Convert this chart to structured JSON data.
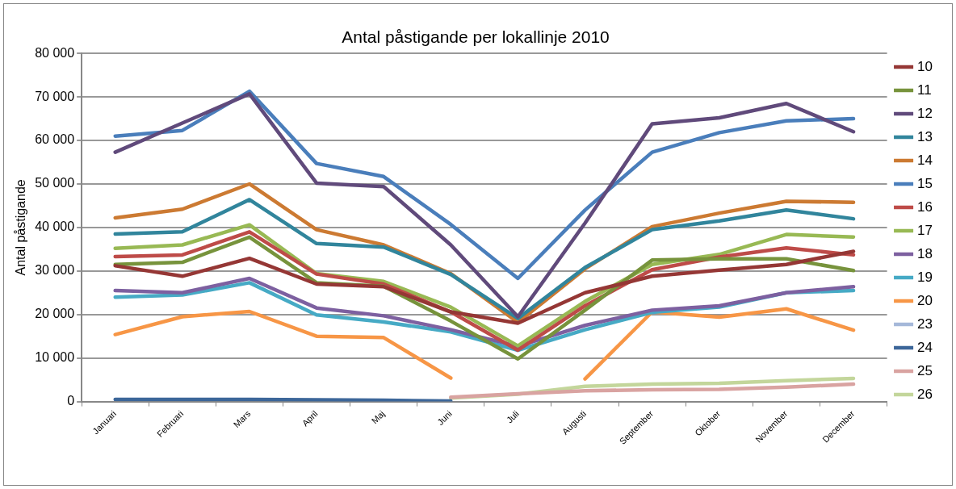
{
  "chart_data": {
    "type": "line",
    "title": "Antal påstigande per lokallinje 2010",
    "ylabel": "Antal påstigande",
    "categories": [
      "Januari",
      "Februari",
      "Mars",
      "April",
      "Maj",
      "Juni",
      "Juli",
      "Augusti",
      "September",
      "Oktober",
      "November",
      "December"
    ],
    "ylim": [
      0,
      80000
    ],
    "yticks": [
      {
        "value": 0,
        "label": "0"
      },
      {
        "value": 10000,
        "label": "10 000"
      },
      {
        "value": 20000,
        "label": "20 000"
      },
      {
        "value": 30000,
        "label": "30 000"
      },
      {
        "value": 40000,
        "label": "40 000"
      },
      {
        "value": 50000,
        "label": "50 000"
      },
      {
        "value": 60000,
        "label": "60 000"
      },
      {
        "value": 70000,
        "label": "70 000"
      },
      {
        "value": 80000,
        "label": "80 000"
      }
    ],
    "grid": "y",
    "legend": "right",
    "marker": "none",
    "line_style": "solid",
    "series": [
      {
        "name": "10",
        "color": "#953735",
        "values": [
          31200,
          28800,
          32900,
          27000,
          26400,
          20600,
          18000,
          25000,
          28800,
          30200,
          31500,
          34500
        ]
      },
      {
        "name": "11",
        "color": "#77933c",
        "values": [
          31500,
          32000,
          37800,
          27300,
          26500,
          18500,
          9800,
          21000,
          32500,
          32800,
          32800,
          30100
        ]
      },
      {
        "name": "12",
        "color": "#604a7b",
        "values": [
          57300,
          64000,
          70700,
          50200,
          49400,
          36000,
          19500,
          41000,
          63800,
          65200,
          68500,
          62000
        ]
      },
      {
        "name": "13",
        "color": "#31859c",
        "values": [
          38500,
          39000,
          46400,
          36300,
          35500,
          29200,
          19100,
          30800,
          39500,
          41500,
          44000,
          42000
        ]
      },
      {
        "name": "14",
        "color": "#cc7a32",
        "values": [
          42200,
          44200,
          50000,
          39500,
          36000,
          29400,
          18200,
          30500,
          40200,
          43300,
          46000,
          45800
        ]
      },
      {
        "name": "15",
        "color": "#4a7ebb",
        "values": [
          61000,
          62300,
          71300,
          54700,
          51700,
          40700,
          28300,
          44000,
          57300,
          61800,
          64500,
          65000
        ]
      },
      {
        "name": "16",
        "color": "#be4b48",
        "values": [
          33300,
          33700,
          39000,
          29300,
          27000,
          20600,
          11800,
          22000,
          30300,
          33200,
          35300,
          33700
        ]
      },
      {
        "name": "17",
        "color": "#98b954",
        "values": [
          35200,
          36000,
          40600,
          29400,
          27600,
          21700,
          12800,
          23000,
          31500,
          33800,
          38400,
          37800
        ]
      },
      {
        "name": "18",
        "color": "#7d60a0",
        "values": [
          25500,
          25000,
          28300,
          21500,
          19700,
          16500,
          12700,
          17500,
          21000,
          22000,
          25000,
          26400
        ]
      },
      {
        "name": "19",
        "color": "#46aac5",
        "values": [
          24000,
          24500,
          27300,
          19900,
          18300,
          16000,
          11800,
          16500,
          20500,
          21700,
          25000,
          25500
        ]
      },
      {
        "name": "20",
        "color": "#f79646",
        "values": [
          15400,
          19500,
          20700,
          15000,
          14700,
          5400,
          null,
          5200,
          20600,
          19400,
          21300,
          16400
        ]
      },
      {
        "name": "23",
        "color": "#a5b8d9",
        "values": [
          null,
          null,
          null,
          null,
          null,
          null,
          null,
          null,
          null,
          null,
          null,
          null
        ]
      },
      {
        "name": "24",
        "color": "#3c6699",
        "values": [
          500,
          500,
          500,
          400,
          300,
          100,
          null,
          null,
          null,
          null,
          null,
          null
        ]
      },
      {
        "name": "25",
        "color": "#d9a3a1",
        "values": [
          null,
          null,
          null,
          null,
          null,
          1000,
          1800,
          2500,
          2700,
          2800,
          3300,
          4000
        ]
      },
      {
        "name": "26",
        "color": "#c3d69b",
        "values": [
          null,
          null,
          null,
          null,
          null,
          800,
          1700,
          3500,
          4000,
          4200,
          4800,
          5300
        ]
      }
    ]
  }
}
